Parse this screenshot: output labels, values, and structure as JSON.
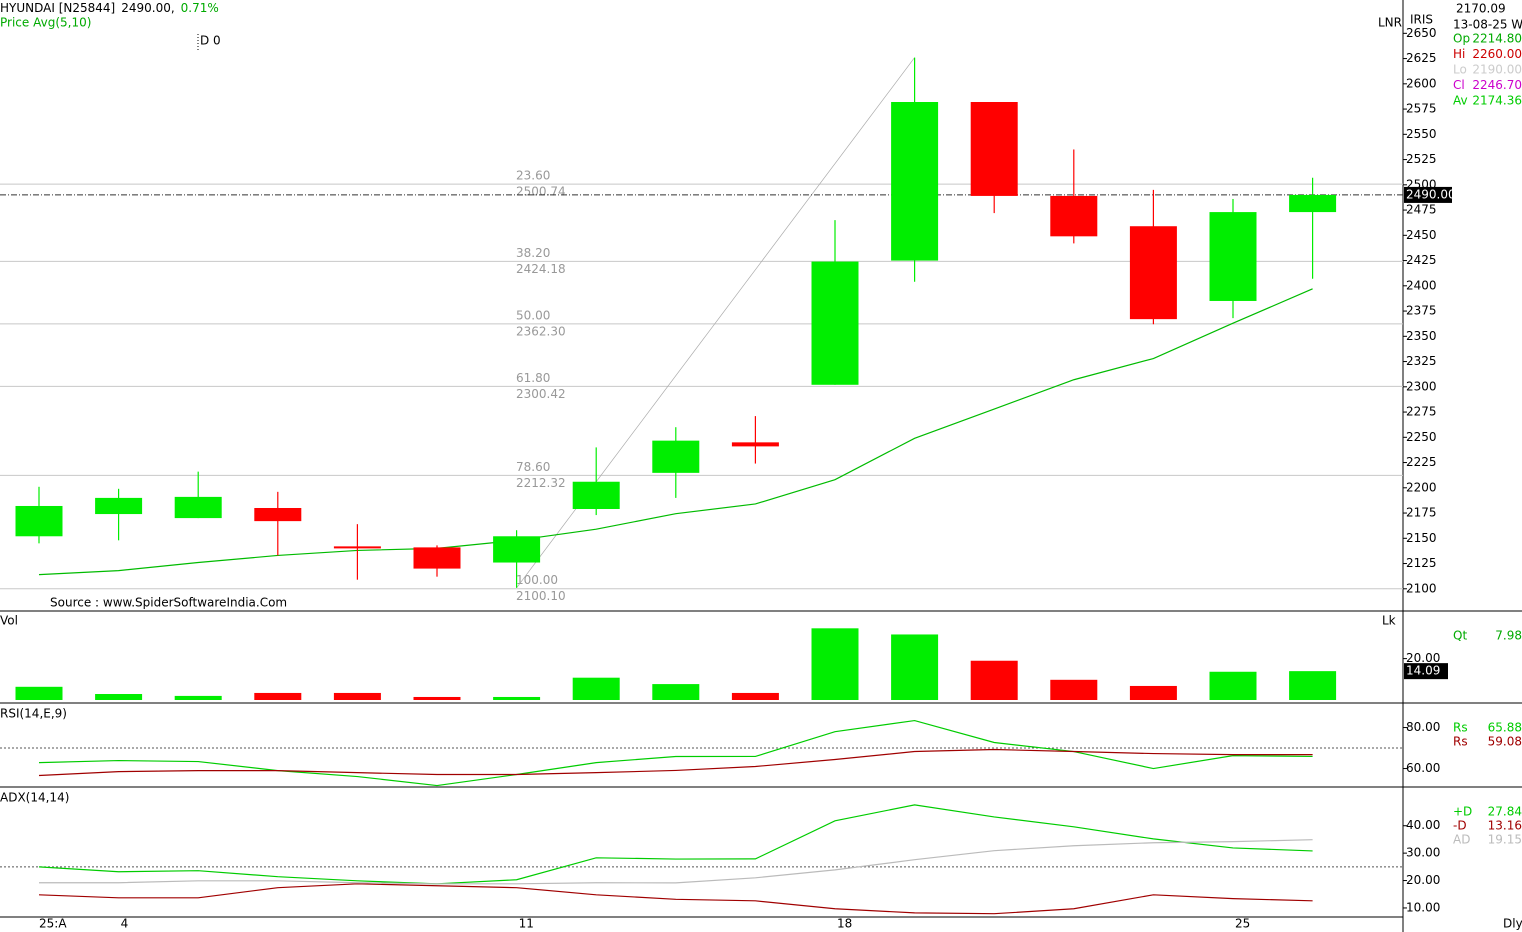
{
  "header": {
    "symbol": "HYUNDAI [N25844]",
    "last": "2490.00,",
    "change": "0.71%",
    "overlay": "Price  Avg(5,10)",
    "marker": "D 0",
    "corner_value": "2170.09",
    "date": "13-08-25 We",
    "tag1": "LNR",
    "tag2": "IRIS",
    "source": "Source : www.SpiderSoftwareIndia.Com",
    "period": "Dly",
    "readout": [
      {
        "name": "Op",
        "text": "2214.80",
        "color": "#00aa00"
      },
      {
        "name": "Hi",
        "text": "2260.00",
        "color": "#cc0000"
      },
      {
        "name": "Lo",
        "text": "2190.00",
        "color": "#cccccc"
      },
      {
        "name": "Cl",
        "text": "2246.70",
        "color": "#cc00cc"
      },
      {
        "name": "Av",
        "text": "2174.36",
        "color": "#00cc00"
      }
    ]
  },
  "chart_data": [
    {
      "type": "candlestick",
      "categories": [
        "25:A",
        "4",
        null,
        null,
        null,
        null,
        "11",
        null,
        null,
        null,
        "18",
        null,
        null,
        null,
        null,
        "25",
        null
      ],
      "open": [
        2152,
        2174,
        2170,
        2180,
        2142,
        2141,
        2126,
        2179,
        2214.8,
        2245,
        2302,
        2425,
        2582,
        2489,
        2459,
        2385,
        2473
      ],
      "high": [
        2201,
        2199,
        2216,
        2196,
        2164,
        2143,
        2158,
        2240,
        2260,
        2271,
        2465,
        2626,
        2582,
        2535,
        2495,
        2486,
        2507
      ],
      "low": [
        2145,
        2148,
        2170,
        2133,
        2109,
        2112,
        2101,
        2173,
        2190,
        2224,
        2302,
        2404,
        2472,
        2442,
        2362,
        2368,
        2407
      ],
      "close": [
        2182,
        2190,
        2191,
        2167,
        2140,
        2120,
        2152,
        2206,
        2246.7,
        2241,
        2424,
        2582,
        2489,
        2449,
        2367,
        2473,
        2490
      ],
      "up_color": "#00ee00",
      "down_color": "#ff0000",
      "series": [
        {
          "name": "Avg(5,10)",
          "color": "#00bb00",
          "values": [
            2114,
            2118,
            2126,
            2133,
            2138,
            2140,
            2148,
            2159,
            2174.36,
            2184,
            2208,
            2249,
            2278,
            2307,
            2328,
            2363,
            2397
          ]
        }
      ],
      "fib_levels": [
        {
          "ratio": "23.60",
          "value": 2500.74,
          "label": "2500.74"
        },
        {
          "ratio": "38.20",
          "value": 2424.18,
          "label": "2424.18"
        },
        {
          "ratio": "50.00",
          "value": 2362.3,
          "label": "2362.30"
        },
        {
          "ratio": "61.80",
          "value": 2300.42,
          "label": "2300.42"
        },
        {
          "ratio": "78.60",
          "value": 2212.32,
          "label": "2212.32"
        },
        {
          "ratio": "100.00",
          "value": 2100.1,
          "label": "2100.10"
        }
      ],
      "last_marker": {
        "value": 2490,
        "label": "2490.00"
      },
      "ylim": [
        2079,
        2683
      ],
      "yticks": [
        2100,
        2125,
        2150,
        2175,
        2200,
        2225,
        2250,
        2275,
        2300,
        2325,
        2350,
        2375,
        2400,
        2425,
        2450,
        2475,
        2500,
        2525,
        2550,
        2575,
        2600,
        2625,
        2650
      ]
    },
    {
      "type": "bar",
      "title": "Vol",
      "unit": "Lk",
      "values": [
        6.7,
        3.3,
        2.4,
        3.8,
        3.8,
        1.9,
        1.9,
        11,
        7.98,
        3.8,
        34.3,
        31.4,
        19,
        10,
        7.1,
        13.8,
        14.09
      ],
      "ylim": [
        0,
        42
      ],
      "yticks": [
        {
          "value": 20,
          "label": "20.00"
        }
      ],
      "last_marker": 14.09,
      "readout_name": "Qt",
      "readout": [
        7.98
      ]
    },
    {
      "type": "line",
      "title": "RSI(14,E,9)",
      "series": [
        {
          "name": "Rs",
          "color": "#00cc00",
          "values": [
            62.9,
            63.9,
            63.4,
            59,
            56.1,
            51.7,
            57.1,
            62.9,
            65.88,
            65.9,
            78,
            83.4,
            72.7,
            68.3,
            60,
            66.3,
            65.9
          ]
        },
        {
          "name": "Rs",
          "color": "#a00000",
          "values": [
            56.6,
            58.5,
            59,
            59,
            58,
            57.1,
            57.1,
            58,
            59.08,
            61,
            64.4,
            68.3,
            69.3,
            68.3,
            67.3,
            66.8,
            66.8
          ]
        }
      ],
      "readout": [
        65.88,
        59.08
      ],
      "ref_line": 70,
      "ylim": [
        51,
        91
      ],
      "yticks": [
        {
          "value": 60,
          "label": "60.00"
        },
        {
          "value": 80,
          "label": "80.00"
        }
      ]
    },
    {
      "type": "line",
      "title": "ADX(14,14)",
      "series": [
        {
          "name": "+D",
          "color": "#00cc00",
          "values": [
            25,
            23.2,
            23.6,
            21.4,
            19.9,
            18.8,
            20.3,
            28.3,
            27.84,
            27.9,
            41.8,
            47.6,
            43.2,
            39.6,
            35.2,
            31.9,
            30.8
          ]
        },
        {
          "name": "-D",
          "color": "#a00000",
          "values": [
            14.8,
            13.7,
            13.7,
            17.4,
            18.8,
            18.1,
            17.4,
            14.8,
            13.16,
            12.6,
            9.7,
            8.2,
            7.9,
            9.7,
            14.8,
            13.4,
            12.6
          ]
        },
        {
          "name": "AD",
          "color": "#bbbbbb",
          "values": [
            19.2,
            19.2,
            19.9,
            19.9,
            19.2,
            18.8,
            18.8,
            19.2,
            19.15,
            21,
            23.9,
            27.6,
            30.9,
            32.7,
            33.8,
            34.2,
            34.9
          ]
        }
      ],
      "readout": [
        27.84,
        13.16,
        19.15
      ],
      "ref_line": 25,
      "ylim": [
        6.7,
        53.4
      ],
      "yticks": [
        {
          "value": 10,
          "label": "10.00"
        },
        {
          "value": 20,
          "label": "20.00"
        },
        {
          "value": 30,
          "label": "30.00"
        },
        {
          "value": 40,
          "label": "40.00"
        }
      ]
    }
  ]
}
